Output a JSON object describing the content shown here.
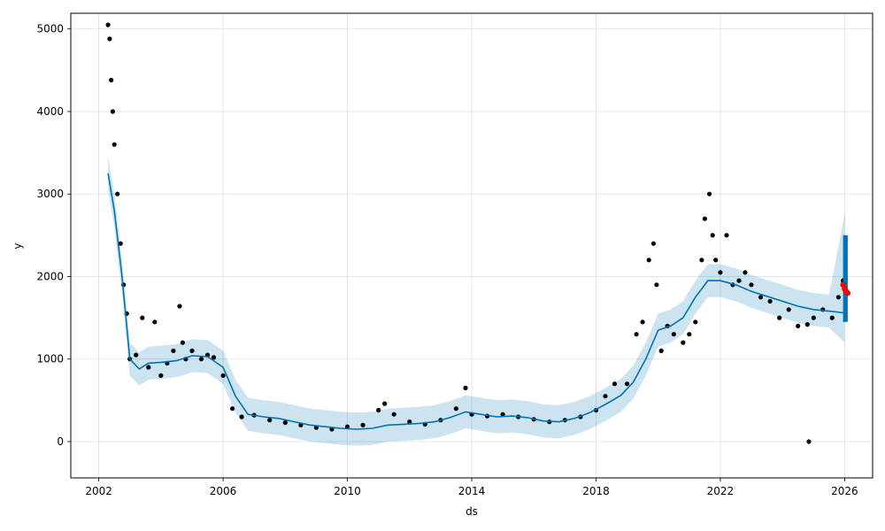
{
  "chart_data": {
    "type": "scatter",
    "title": "",
    "xlabel": "ds",
    "ylabel": "y",
    "xlim": [
      2001.1,
      2026.9
    ],
    "ylim": [
      -440,
      5190
    ],
    "grid": true,
    "x_ticks": [
      {
        "value": 2002,
        "label": "2002"
      },
      {
        "value": 2006,
        "label": "2006"
      },
      {
        "value": 2010,
        "label": "2010"
      },
      {
        "value": 2014,
        "label": "2014"
      },
      {
        "value": 2018,
        "label": "2018"
      },
      {
        "value": 2022,
        "label": "2022"
      },
      {
        "value": 2026,
        "label": "2026"
      }
    ],
    "y_ticks": [
      {
        "value": 0,
        "label": "0"
      },
      {
        "value": 1000,
        "label": "1000"
      },
      {
        "value": 2000,
        "label": "2000"
      },
      {
        "value": 3000,
        "label": "3000"
      },
      {
        "value": 4000,
        "label": "4000"
      },
      {
        "value": 5000,
        "label": "5000"
      }
    ],
    "colors": {
      "observed": "#000000",
      "forecast_line": "#0072B2",
      "uncertainty": "#0072B2",
      "highlight": "#ff0000",
      "grid": "#dddddd",
      "axes": "#000000"
    },
    "series": [
      {
        "kind": "observed",
        "x": [
          2002.3,
          2002.35,
          2002.4,
          2002.45,
          2002.5,
          2002.6,
          2002.7,
          2002.8,
          2002.9,
          2003.0,
          2003.2,
          2003.4,
          2003.6,
          2003.8,
          2004.0,
          2004.2,
          2004.4,
          2004.6,
          2004.7,
          2004.8,
          2005.0,
          2005.3,
          2005.5,
          2005.7,
          2006.0,
          2006.3,
          2006.6,
          2007.0,
          2007.5,
          2008.0,
          2008.5,
          2009.0,
          2009.5,
          2010.0,
          2010.5,
          2011.0,
          2011.2,
          2011.5,
          2012.0,
          2012.5,
          2013.0,
          2013.5,
          2013.8,
          2014.0,
          2014.5,
          2015.0,
          2015.5,
          2016.0,
          2016.5,
          2017.0,
          2017.5,
          2018.0,
          2018.3,
          2018.6,
          2019.0,
          2019.3,
          2019.5,
          2019.7,
          2019.85,
          2019.95,
          2020.1,
          2020.3,
          2020.5,
          2020.8,
          2021.0,
          2021.2,
          2021.4,
          2021.5,
          2021.65,
          2021.75,
          2021.85,
          2022.0,
          2022.2,
          2022.4,
          2022.6,
          2022.8,
          2023.0,
          2023.3,
          2023.6,
          2023.9,
          2024.2,
          2024.5,
          2024.8,
          2024.85,
          2025.0,
          2025.3,
          2025.6,
          2025.8,
          2025.95
        ],
        "y": [
          5050,
          4880,
          4380,
          4000,
          3600,
          3000,
          2400,
          1900,
          1550,
          1000,
          1050,
          1500,
          900,
          1450,
          800,
          950,
          1100,
          1640,
          1200,
          1000,
          1100,
          1000,
          1050,
          1020,
          800,
          400,
          300,
          320,
          260,
          230,
          200,
          170,
          150,
          180,
          200,
          380,
          460,
          330,
          240,
          210,
          260,
          400,
          650,
          330,
          310,
          330,
          300,
          270,
          240,
          260,
          300,
          380,
          550,
          700,
          700,
          1300,
          1450,
          2200,
          2400,
          1900,
          1100,
          1400,
          1300,
          1200,
          1300,
          1450,
          2200,
          2700,
          3000,
          2500,
          2200,
          2050,
          2500,
          1900,
          1950,
          2050,
          1900,
          1750,
          1700,
          1500,
          1600,
          1400,
          1420,
          0,
          1500,
          1600,
          1500,
          1750,
          1950
        ]
      },
      {
        "kind": "forecast",
        "x": [
          2002.3,
          2002.5,
          2002.75,
          2003.0,
          2003.3,
          2003.6,
          2004.0,
          2004.5,
          2005.0,
          2005.5,
          2006.0,
          2006.4,
          2006.8,
          2007.3,
          2007.8,
          2008.3,
          2008.8,
          2009.3,
          2009.8,
          2010.3,
          2010.8,
          2011.3,
          2011.8,
          2012.3,
          2012.8,
          2013.3,
          2013.8,
          2014.3,
          2014.8,
          2015.3,
          2015.8,
          2016.3,
          2016.8,
          2017.3,
          2017.8,
          2018.3,
          2018.8,
          2019.2,
          2019.6,
          2020.0,
          2020.4,
          2020.8,
          2021.2,
          2021.6,
          2022.0,
          2022.5,
          2023.0,
          2023.5,
          2024.0,
          2024.5,
          2025.0,
          2025.5,
          2026.0
        ],
        "y": [
          3250,
          2800,
          2000,
          1000,
          880,
          950,
          960,
          980,
          1040,
          1030,
          900,
          550,
          330,
          300,
          280,
          240,
          200,
          180,
          160,
          150,
          160,
          200,
          210,
          220,
          240,
          290,
          360,
          330,
          300,
          310,
          290,
          250,
          240,
          280,
          350,
          450,
          560,
          720,
          1000,
          1350,
          1400,
          1500,
          1750,
          1950,
          1950,
          1900,
          1820,
          1760,
          1700,
          1640,
          1600,
          1580,
          1560
        ],
        "yhat_lower": [
          3050,
          2600,
          1800,
          800,
          680,
          750,
          760,
          780,
          840,
          830,
          700,
          350,
          130,
          100,
          80,
          40,
          0,
          -20,
          -40,
          -50,
          -40,
          0,
          10,
          20,
          40,
          90,
          160,
          130,
          100,
          110,
          90,
          50,
          40,
          80,
          150,
          250,
          360,
          520,
          800,
          1150,
          1200,
          1300,
          1550,
          1750,
          1750,
          1700,
          1620,
          1560,
          1500,
          1440,
          1400,
          1380,
          1200
        ],
        "yhat_upper": [
          3450,
          3000,
          2200,
          1200,
          1080,
          1150,
          1160,
          1180,
          1240,
          1230,
          1100,
          750,
          530,
          500,
          480,
          440,
          400,
          380,
          360,
          350,
          360,
          400,
          410,
          420,
          440,
          490,
          560,
          530,
          500,
          510,
          490,
          450,
          440,
          480,
          550,
          650,
          760,
          920,
          1200,
          1550,
          1600,
          1700,
          1950,
          2150,
          2150,
          2100,
          2020,
          1960,
          1900,
          1840,
          1800,
          1780,
          2750
        ]
      },
      {
        "kind": "highlight",
        "x": [
          2025.95,
          2026.0,
          2026.05,
          2026.1
        ],
        "y": [
          1900,
          1850,
          1820,
          1800
        ]
      }
    ],
    "forecast_band": {
      "x_start": 2025.95,
      "x_end": 2026.1,
      "y_low": 1450,
      "y_high": 2500
    }
  }
}
